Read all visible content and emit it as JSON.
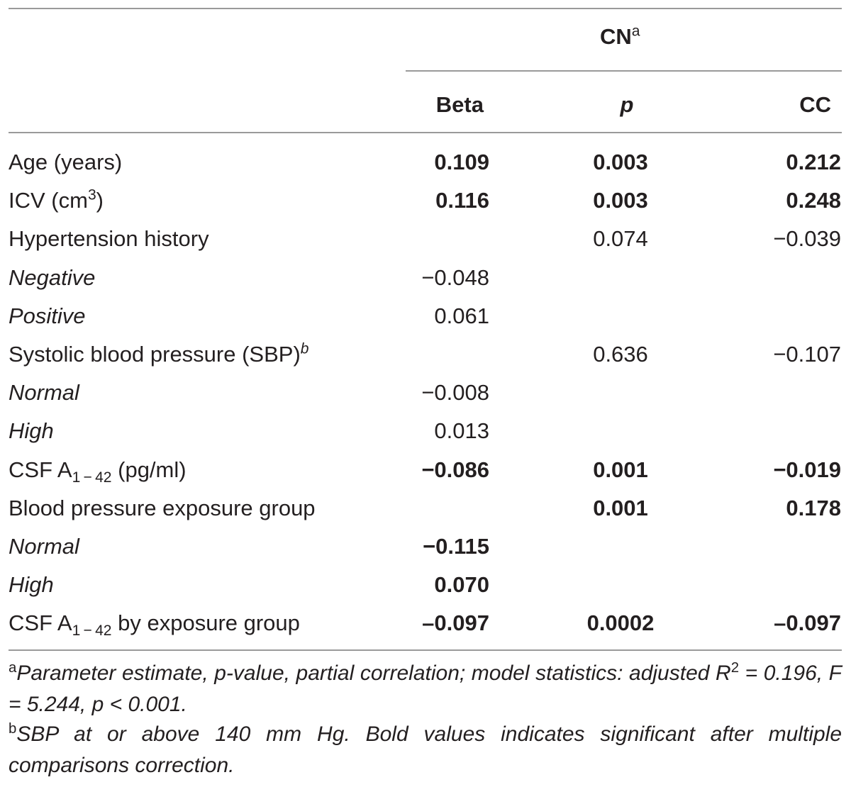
{
  "header": {
    "group": "CN",
    "group_sup": "a",
    "columns": [
      "Beta",
      "p",
      "CC"
    ]
  },
  "rows": [
    {
      "label": "Age (years)",
      "beta": "0.109",
      "p": "0.003",
      "cc": "0.212"
    },
    {
      "label": "ICV (cm",
      "label_sup": "3",
      "label_after": ")",
      "beta": "0.116",
      "p": "0.003",
      "cc": "0.248"
    },
    {
      "label": "Hypertension history",
      "beta": "",
      "p": "0.074",
      "cc": "−0.039"
    },
    {
      "label": "Negative",
      "beta": "−0.048",
      "p": "",
      "cc": ""
    },
    {
      "label": "Positive",
      "beta": "0.061",
      "p": "",
      "cc": ""
    },
    {
      "label": "Systolic blood pressure (SBP)",
      "label_sup": "b",
      "beta": "",
      "p": "0.636",
      "cc": "−0.107"
    },
    {
      "label": "Normal",
      "beta": "−0.008",
      "p": "",
      "cc": ""
    },
    {
      "label": "High",
      "beta": "0.013",
      "p": "",
      "cc": ""
    },
    {
      "label": "CSF A",
      "label_sub": "1 − 42",
      "label_after": " (pg/ml)",
      "beta": "−0.086",
      "p": "0.001",
      "cc": "−0.019"
    },
    {
      "label": "Blood pressure exposure group",
      "beta": "",
      "p": "0.001",
      "cc": "0.178"
    },
    {
      "label": "Normal",
      "beta": "−0.115",
      "p": "",
      "cc": ""
    },
    {
      "label": "High",
      "beta": "0.070",
      "p": "",
      "cc": ""
    },
    {
      "label": "CSF A",
      "label_sub": "1 − 42",
      "label_after": " by exposure group",
      "beta": "–0.097",
      "p": "0.0002",
      "cc": "–0.097"
    }
  ],
  "footnotes": [
    {
      "mark": "a",
      "text_1": "Parameter estimate, p-value, partial correlation; model statistics: adjusted ",
      "text_2": "R",
      "sup": "2",
      "text_3": " = 0.196, F = 5.244, p < 0.001."
    },
    {
      "mark": "b",
      "text": "SBP at or above 140 mm Hg. Bold values indicates significant after multiple comparisons correction."
    }
  ]
}
